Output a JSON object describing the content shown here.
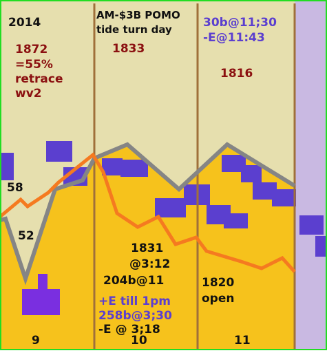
{
  "header": {
    "year": "2014"
  },
  "day1": {
    "lines": [
      "1872",
      "=55%",
      "retrace",
      "wv2"
    ],
    "low1": "58",
    "low2": "52",
    "label": "9"
  },
  "day2": {
    "title": [
      "AM-$3B POMO",
      "tide turn day"
    ],
    "high": "1833",
    "notes": [
      "1831",
      "@3:12",
      "204b@11"
    ],
    "notes2": [
      "+E till 1pm",
      "258b@3;30",
      "-E @ 3;18"
    ],
    "label": "10"
  },
  "day3": {
    "title": [
      "30b@11;30",
      "-E@11:43"
    ],
    "high": "1816",
    "notes": [
      "1820",
      "open"
    ],
    "label": "11"
  }
}
